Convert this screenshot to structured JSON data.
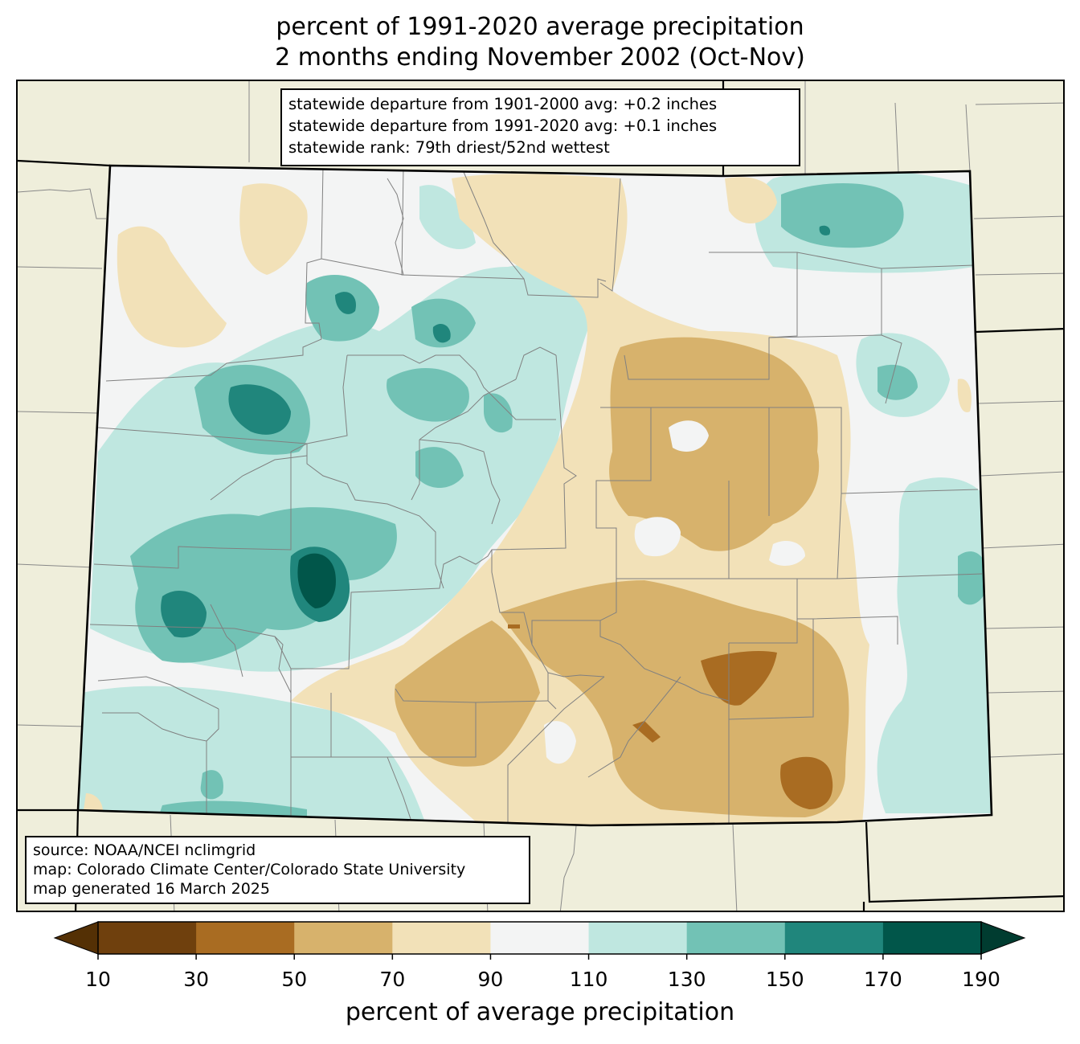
{
  "title": {
    "line1": "percent of 1991-2020 average precipitation",
    "line2": "2 months ending November 2002 (Oct-Nov)"
  },
  "stats": {
    "line1": "statewide departure from 1901-2000 avg: +0.2 inches",
    "line2": "statewide departure from 1991-2020 avg: +0.1 inches",
    "line3": "statewide rank: 79th driest/52nd wettest"
  },
  "source": {
    "line1": "source: NOAA/NCEI nclimgrid",
    "line2": "map: Colorado Climate Center/Colorado State University",
    "line3": "map generated 16 March 2025"
  },
  "colorbar": {
    "label": "percent of average precipitation",
    "ticks": [
      "10",
      "30",
      "50",
      "70",
      "90",
      "110",
      "130",
      "150",
      "170",
      "190"
    ],
    "colors": [
      "#6f400d",
      "#a96c22",
      "#d7b26c",
      "#f2e1b8",
      "#f3f4f4",
      "#bfe7e0",
      "#72c2b5",
      "#20867c",
      "#01564a"
    ],
    "under_color": "#543005",
    "over_color": "#003c30"
  },
  "map": {
    "background_color": "#efeedb",
    "state_outline_color": "#000000",
    "county_line_color": "#808080"
  }
}
